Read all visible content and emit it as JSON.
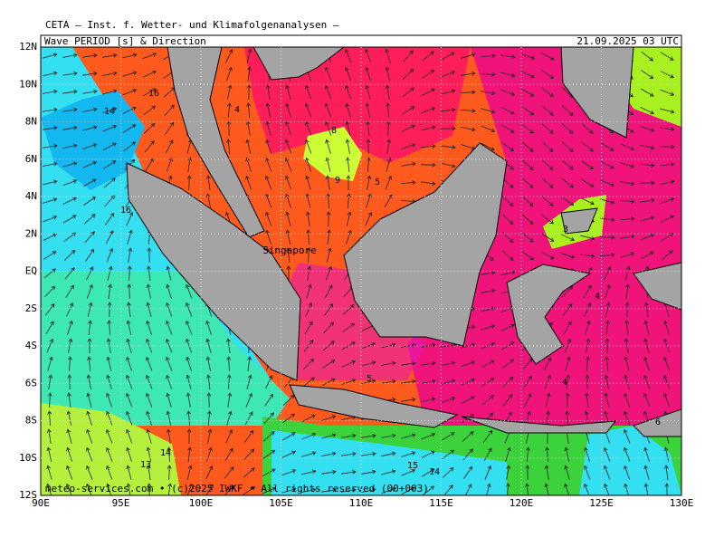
{
  "header": {
    "title": "CETA – Inst. f. Wetter- und Klimafolgenanalysen –",
    "product": "Wave PERIOD [s] & Direction",
    "valid_time": "21.09.2025 03 UTC"
  },
  "lat_labels": [
    "12N",
    "10N",
    "8N",
    "6N",
    "4N",
    "2N",
    "EQ",
    "2S",
    "4S",
    "6S",
    "8S",
    "10S",
    "12S"
  ],
  "lon_labels": [
    "90E",
    "95E",
    "100E",
    "105E",
    "110E",
    "115E",
    "120E",
    "125E",
    "130E"
  ],
  "contour_labels": [
    "16",
    "14",
    "4",
    "8",
    "9",
    "5",
    "16",
    "3",
    "4",
    "5",
    "4",
    "6",
    "14",
    "13",
    "15",
    "14"
  ],
  "place_labels": [
    "Singapore"
  ],
  "footer": "meteo-services.com • (c)2025 IWKF • All rights reserved (00+003)"
}
